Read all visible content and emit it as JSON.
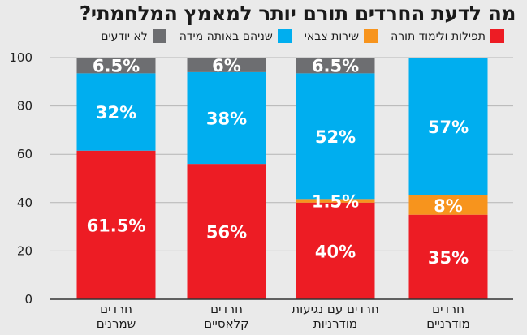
{
  "chart_data": {
    "type": "bar",
    "stacked": true,
    "title": "מה לדעת החרדים תורם יותר למאמץ המלחמתי?",
    "ylim": [
      0,
      100
    ],
    "yticks": [
      0,
      20,
      40,
      60,
      80,
      100
    ],
    "categories": [
      [
        "חרדים",
        "שמרנים"
      ],
      [
        "חרדים",
        "קלאסיים"
      ],
      [
        "חרדים עם נגיעות",
        "מודרניות"
      ],
      [
        "חרדים",
        "מודרניים"
      ]
    ],
    "series": [
      {
        "name": "תפילות ולימוד תורה",
        "color": "#ed1c24",
        "values": [
          61.5,
          56,
          40,
          35
        ],
        "labels": [
          "61.5%",
          "56%",
          "40%",
          "35%"
        ]
      },
      {
        "name": "שירות צבאי",
        "color": "#f7941d",
        "values": [
          0,
          0,
          1.5,
          8
        ],
        "labels": [
          "",
          "",
          "1.5%",
          "8%"
        ]
      },
      {
        "name": "שניהם באותה מידה",
        "color": "#00aeef",
        "values": [
          32,
          38,
          52,
          57
        ],
        "labels": [
          "32%",
          "38%",
          "52%",
          "57%"
        ]
      },
      {
        "name": "לא יודעים",
        "color": "#6d6e71",
        "values": [
          6.5,
          6,
          6.5,
          0
        ],
        "labels": [
          "6.5%",
          "6%",
          "6.5%",
          ""
        ]
      }
    ],
    "legend_order": [
      0,
      1,
      2,
      3
    ]
  }
}
